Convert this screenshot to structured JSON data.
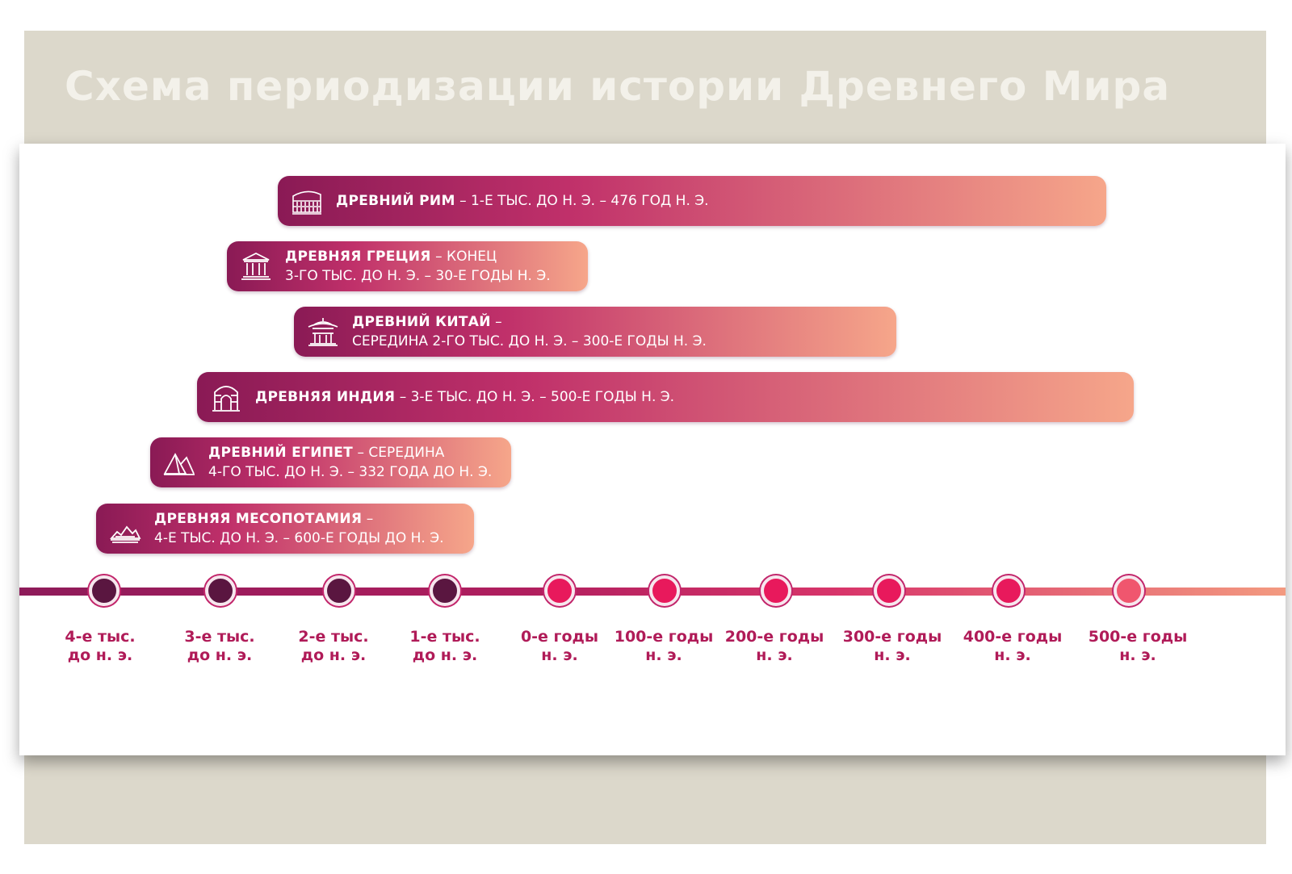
{
  "title": "Схема периодизации истории Древнего Мира",
  "periods": [
    {
      "name": "ДРЕВНИЙ РИМ",
      "line1_rest": " – 1-Е ТЫС. ДО Н. Э. – 476 ГОД Н. Э.",
      "line2": "",
      "icon": "colosseum-icon"
    },
    {
      "name": "ДРЕВНЯЯ ГРЕЦИЯ",
      "line1_rest": " – КОНЕЦ",
      "line2": "3-ГО ТЫС. ДО Н. Э. – 30-Е ГОДЫ Н. Э.",
      "icon": "greek-temple-icon"
    },
    {
      "name": "ДРЕВНИЙ КИТАЙ",
      "line1_rest": " –",
      "line2": "СЕРЕДИНА 2-ГО ТЫС. ДО Н. Э. – 300-Е ГОДЫ Н. Э.",
      "icon": "pagoda-icon"
    },
    {
      "name": "ДРЕВНЯЯ ИНДИЯ",
      "line1_rest": " – 3-Е ТЫС. ДО Н. Э. – 500-Е ГОДЫ Н. Э.",
      "line2": "",
      "icon": "indian-arch-icon"
    },
    {
      "name": "ДРЕВНИЙ ЕГИПЕТ",
      "line1_rest": " – СЕРЕДИНА",
      "line2": "4-ГО ТЫС. ДО Н. Э. – 332 ГОДА ДО Н. Э.",
      "icon": "pyramids-icon"
    },
    {
      "name": "ДРЕВНЯЯ МЕСОПОТАМИЯ",
      "line1_rest": " –",
      "line2": "4-Е ТЫС. ДО Н. Э. – 600-Е ГОДЫ ДО Н. Э.",
      "icon": "ziggurat-icon"
    }
  ],
  "timeline": [
    {
      "line1": "4-е тыс.",
      "line2": "до  н. э.",
      "color": "#5a1640"
    },
    {
      "line1": "3-е тыс.",
      "line2": "до н. э.",
      "color": "#5a1640"
    },
    {
      "line1": "2-е тыс.",
      "line2": "до  н. э.",
      "color": "#5a1640"
    },
    {
      "line1": "1-е тыс.",
      "line2": "до  н. э.",
      "color": "#5a1640"
    },
    {
      "line1": "0-е годы",
      "line2": "н. э.",
      "color": "#e8195c"
    },
    {
      "line1": "100-е годы",
      "line2": "н. э.",
      "color": "#e8195c"
    },
    {
      "line1": "200-е годы",
      "line2": "н. э.",
      "color": "#e8195c"
    },
    {
      "line1": "300-е годы",
      "line2": "н. э.",
      "color": "#e8195c"
    },
    {
      "line1": "400-е годы",
      "line2": "н. э.",
      "color": "#e8195c"
    },
    {
      "line1": "500-е годы",
      "line2": "н. э.",
      "color": "#f0566e"
    }
  ],
  "colors": {
    "bar_start": "#8a1a55",
    "bar_mid": "#c0306a",
    "bar_end": "#f6a68a",
    "label": "#b01b58"
  }
}
